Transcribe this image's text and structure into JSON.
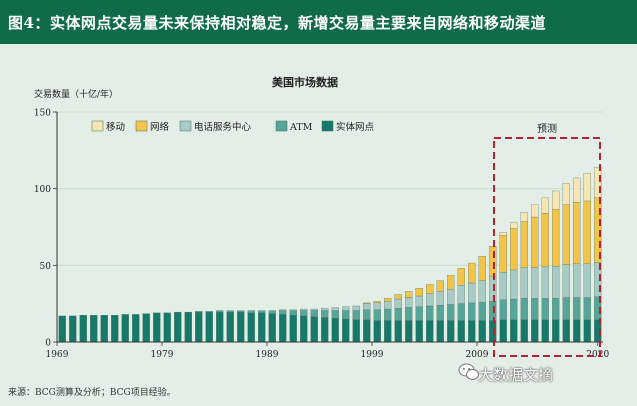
{
  "header": {
    "title": "图4：实体网点交易量未来保持相对稳定，新增交易量主要来自网络和移动渠道"
  },
  "footer": {
    "source": "来源：BCG测算及分析；BCG项目经验。"
  },
  "watermark": {
    "text": "大数据文摘",
    "icon": "wechat-icon"
  },
  "colors": {
    "移动": "#f6e6b3",
    "网络": "#f2c44a",
    "电话服务中心": "#a8cbc6",
    "ATM": "#57a597",
    "实体网点": "#17796a",
    "forecast_box": "#b22234"
  },
  "chart_data": {
    "type": "bar",
    "stacked": true,
    "title": "美国市场数据",
    "ylabel": "交易数量（十亿/年）",
    "xlabel": "",
    "ylim": [
      0,
      150
    ],
    "yticks": [
      0,
      50,
      100,
      150
    ],
    "xticks": [
      "1969",
      "1979",
      "1989",
      "1999",
      "2009",
      "2020"
    ],
    "annotation": "预测",
    "forecast_from": 2011,
    "legend_position": "top-left",
    "categories": [
      1969,
      1970,
      1971,
      1972,
      1973,
      1974,
      1975,
      1976,
      1977,
      1978,
      1979,
      1980,
      1981,
      1982,
      1983,
      1984,
      1985,
      1986,
      1987,
      1988,
      1989,
      1990,
      1991,
      1992,
      1993,
      1994,
      1995,
      1996,
      1997,
      1998,
      1999,
      2000,
      2001,
      2002,
      2003,
      2004,
      2005,
      2006,
      2007,
      2008,
      2009,
      2010,
      2011,
      2012,
      2013,
      2014,
      2015,
      2016,
      2017,
      2018,
      2019,
      2020
    ],
    "series": [
      {
        "name": "实体网点",
        "values": [
          17,
          17,
          17.5,
          17.5,
          17.5,
          17.5,
          18,
          18,
          18.5,
          19,
          19,
          19.5,
          19.5,
          19.5,
          19.5,
          19.5,
          19.5,
          19.5,
          19,
          19,
          18.5,
          18,
          17.5,
          17,
          16.5,
          16,
          15.5,
          15,
          14.5,
          14.5,
          14,
          14,
          14,
          14,
          14,
          14,
          14,
          14,
          14,
          14,
          14,
          14,
          14.5,
          14.5,
          14.5,
          14.5,
          14.5,
          14.5,
          14.5,
          14.5,
          14.5,
          14.5
        ]
      },
      {
        "name": "ATM",
        "values": [
          0,
          0,
          0,
          0,
          0,
          0,
          0,
          0,
          0,
          0,
          0,
          0,
          0,
          0.5,
          0.5,
          1,
          1,
          1,
          1.5,
          1.5,
          2,
          2.5,
          3,
          3.5,
          4,
          4.5,
          5,
          5.5,
          6,
          6.5,
          7,
          7.5,
          8,
          8.5,
          9,
          9.5,
          10,
          10.5,
          11,
          11.5,
          12,
          12.5,
          13,
          13.5,
          14,
          14,
          14,
          14,
          14.5,
          14.5,
          14.5,
          15
        ]
      },
      {
        "name": "电话服务中心",
        "values": [
          0,
          0,
          0,
          0,
          0,
          0,
          0,
          0,
          0,
          0,
          0,
          0,
          0,
          0,
          0,
          0,
          0,
          0,
          0,
          0,
          0,
          0.5,
          0.5,
          1,
          1,
          1.5,
          2,
          2.5,
          3,
          4,
          4.5,
          5,
          6,
          6.5,
          7,
          8,
          9,
          10,
          12,
          13,
          14,
          16,
          18,
          19,
          20,
          20,
          20.5,
          21,
          21.5,
          22,
          22,
          22.5
        ]
      },
      {
        "name": "网络",
        "values": [
          0,
          0,
          0,
          0,
          0,
          0,
          0,
          0,
          0,
          0,
          0,
          0,
          0,
          0,
          0,
          0,
          0,
          0,
          0,
          0,
          0,
          0,
          0,
          0,
          0,
          0,
          0,
          0,
          0,
          0.5,
          1,
          2,
          3,
          4,
          5,
          6,
          7,
          9,
          11,
          13,
          16,
          20,
          24,
          27,
          30,
          33,
          35,
          37,
          39,
          40,
          41,
          42
        ]
      },
      {
        "name": "移动",
        "values": [
          0,
          0,
          0,
          0,
          0,
          0,
          0,
          0,
          0,
          0,
          0,
          0,
          0,
          0,
          0,
          0,
          0,
          0,
          0,
          0,
          0,
          0,
          0,
          0,
          0,
          0,
          0,
          0,
          0,
          0,
          0,
          0,
          0,
          0,
          0,
          0,
          0,
          0,
          0,
          0,
          0,
          0,
          2,
          4,
          6,
          8,
          10,
          12,
          14,
          16,
          18,
          20
        ]
      }
    ]
  }
}
